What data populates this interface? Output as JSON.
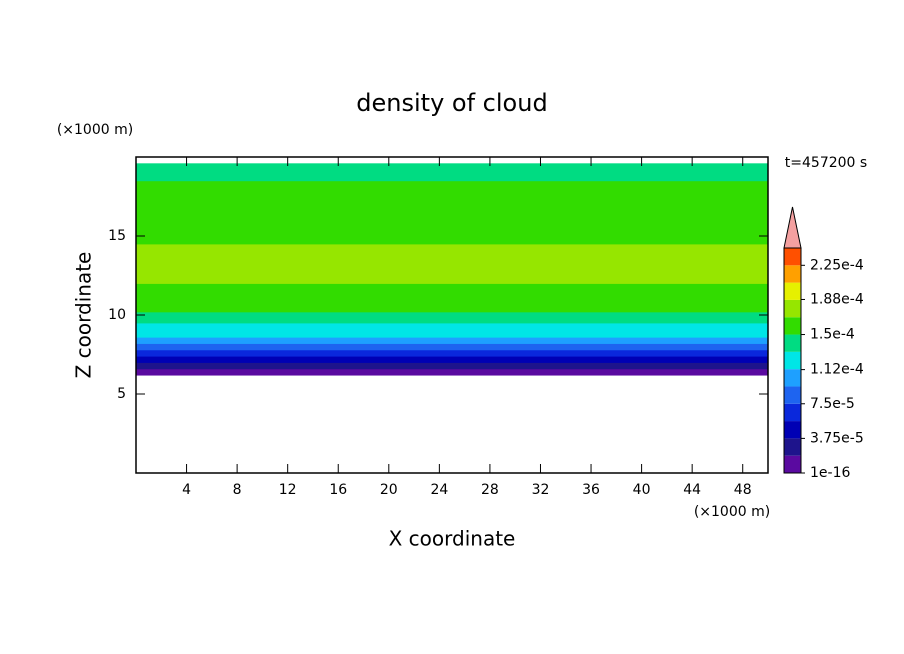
{
  "chart_data": {
    "type": "contour",
    "title": "density of cloud",
    "x_label": "X coordinate",
    "y_label": "Z coordinate",
    "x_unit": "(×1000 m)",
    "y_unit": "(×1000 m)",
    "time_label": "t=457200 s",
    "xlim": [
      0,
      50
    ],
    "ylim": [
      0,
      20
    ],
    "xticks": [
      4,
      8,
      12,
      16,
      20,
      24,
      28,
      32,
      36,
      40,
      44,
      48
    ],
    "yticks": [
      5,
      10,
      15
    ],
    "profile": {
      "z_edges": [
        6.2,
        6.6,
        7.0,
        7.4,
        7.8,
        8.2,
        8.6,
        9.0,
        9.5,
        10.2,
        11.0,
        12.0,
        14.5,
        16.5,
        18.5,
        19.6
      ],
      "values": [
        5e-06,
        2.5e-05,
        4.5e-05,
        6e-05,
        8e-05,
        0.0001,
        0.000115,
        0.00013,
        0.00014,
        0.000155,
        0.000165,
        0.000175,
        0.000165,
        0.000155,
        0.00014
      ]
    },
    "colorbar": {
      "levels": [
        0,
        1.875e-05,
        3.75e-05,
        5.625e-05,
        7.5e-05,
        9.375e-05,
        0.0001125,
        0.00013125,
        0.00015,
        0.00016875,
        0.0001875,
        0.00020625,
        0.000225,
        0.00024375
      ],
      "colors": [
        "#5a0aa0",
        "#1e148c",
        "#0000b4",
        "#0a28dc",
        "#1e64f0",
        "#1ea0ff",
        "#00e6e6",
        "#00dc82",
        "#32dc00",
        "#96e600",
        "#e6f000",
        "#ffa000",
        "#ff5000"
      ],
      "extend_color": "#f4a0a0",
      "ticks": [
        {
          "value": 1e-16,
          "label": "1e-16"
        },
        {
          "value": 3.75e-05,
          "label": "3.75e-5"
        },
        {
          "value": 7.5e-05,
          "label": "7.5e-5"
        },
        {
          "value": 0.000112,
          "label": "1.12e-4"
        },
        {
          "value": 0.00015,
          "label": "1.5e-4"
        },
        {
          "value": 0.000188,
          "label": "1.88e-4"
        },
        {
          "value": 0.000225,
          "label": "2.25e-4"
        }
      ]
    }
  }
}
